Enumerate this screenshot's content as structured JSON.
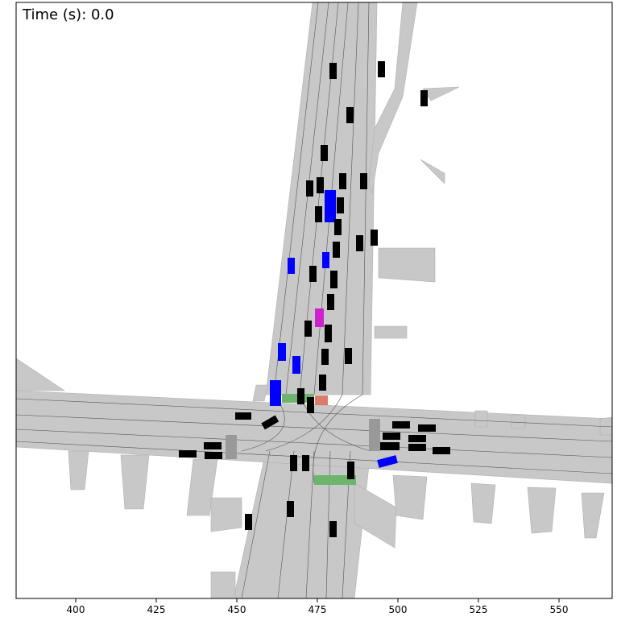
{
  "chart_data": {
    "type": "map",
    "title": "Time (s): 0.0",
    "xlim": [
      381.5,
      566.5
    ],
    "xticks": [
      400,
      425,
      450,
      475,
      500,
      525,
      550
    ]
  }
}
